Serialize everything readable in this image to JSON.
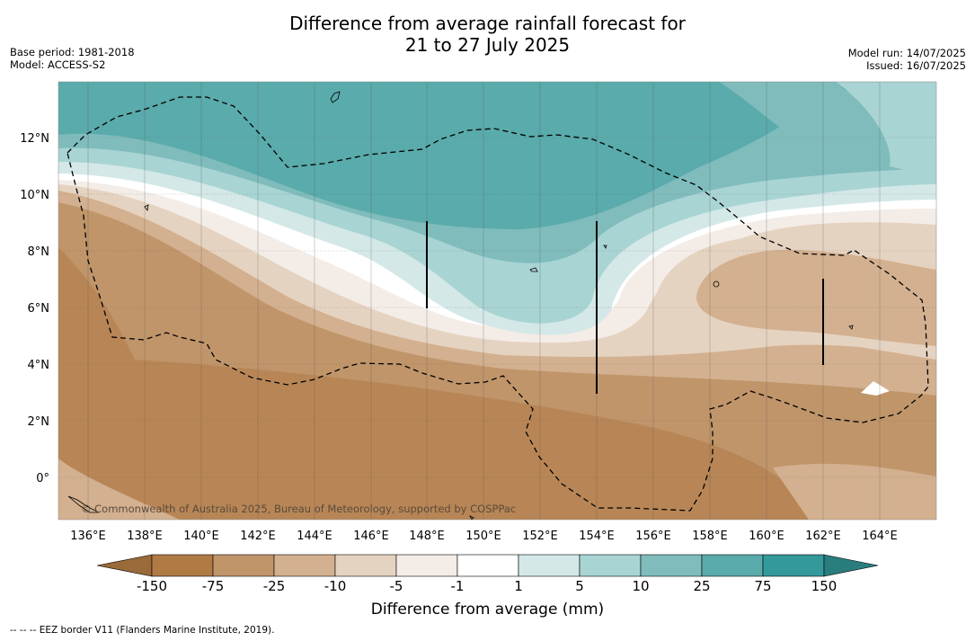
{
  "header": {
    "title_line1": "Difference from average rainfall forecast for",
    "title_line2": "21 to 27 July 2025",
    "base_period": "Base period: 1981-2018",
    "model": "Model: ACCESS-S2",
    "model_run": "Model run: 14/07/2025",
    "issued": "Issued: 16/07/2025"
  },
  "map": {
    "lon_labels": [
      "136°E",
      "138°E",
      "140°E",
      "142°E",
      "144°E",
      "146°E",
      "148°E",
      "150°E",
      "152°E",
      "154°E",
      "156°E",
      "158°E",
      "160°E",
      "162°E",
      "164°E"
    ],
    "lat_labels": [
      "12°N",
      "10°N",
      "8°N",
      "6°N",
      "4°N",
      "2°N",
      "0°"
    ],
    "copyright": "© Commonwealth of Australia 2025, Bureau of Meteorology, supported by COSPPac",
    "boundary_style": "dashed EEZ border"
  },
  "colorbar": {
    "title": "Difference from average (mm)",
    "tick_labels": [
      "-150",
      "-75",
      "-25",
      "-10",
      "-5",
      "-1",
      "1",
      "5",
      "10",
      "25",
      "75",
      "150"
    ],
    "colors": [
      "#9a6a3a",
      "#b07a45",
      "#c0956a",
      "#d3b08f",
      "#e5d3c1",
      "#f4ece7",
      "#ffffff",
      "#d4e8e8",
      "#a9d4d4",
      "#80bcbc",
      "#5aabab",
      "#34999a",
      "#2a7d7d"
    ]
  },
  "footnote": "--  --  -- EEZ border V11 (Flanders Marine Institute, 2019)."
}
